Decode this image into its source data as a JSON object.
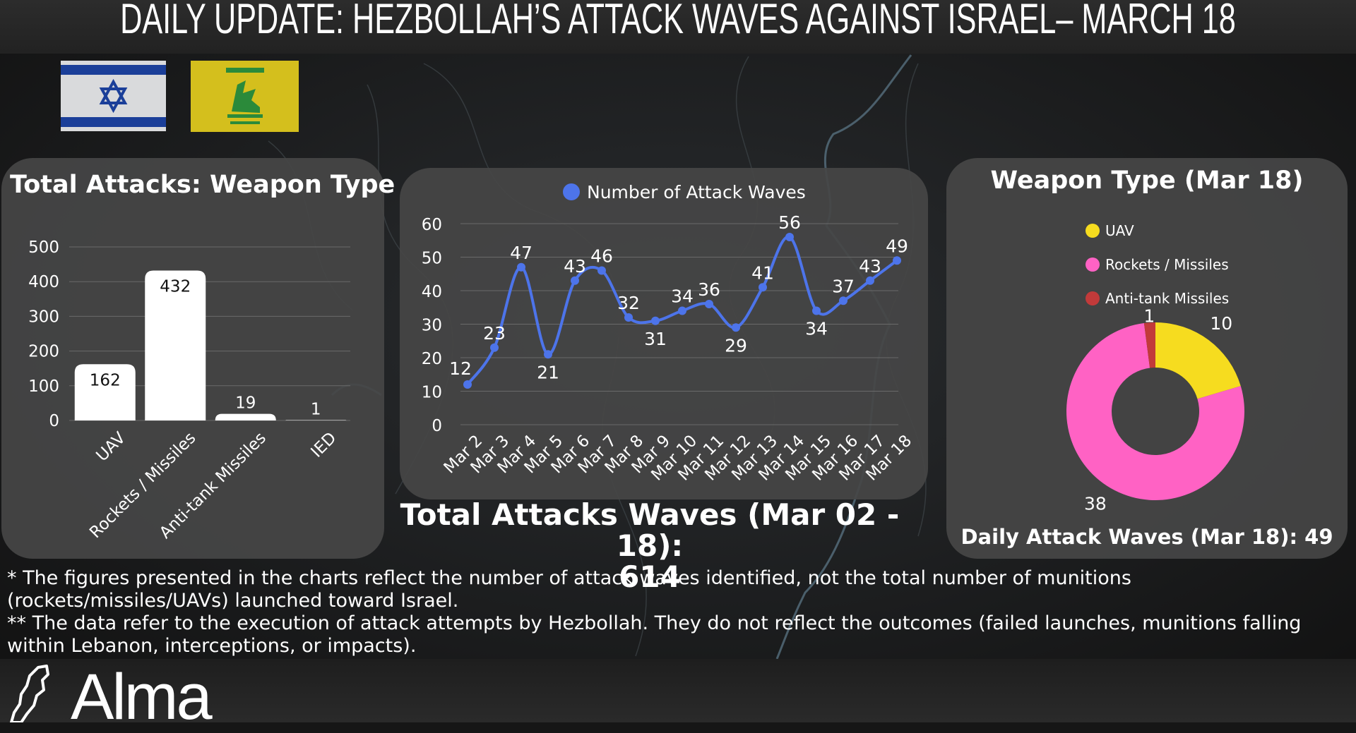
{
  "header": {
    "title": "DAILY UPDATE: HEZBOLLAH’S ATTACK WAVES AGAINST ISRAEL– MARCH 18"
  },
  "flags": [
    {
      "name": "israel-flag",
      "colors": [
        "#ffffff",
        "#1b3f99"
      ]
    },
    {
      "name": "hezbollah-flag",
      "colors": [
        "#d8c31a",
        "#2b8a3a"
      ]
    }
  ],
  "colors": {
    "line": "#4d74ea",
    "uav": "#f6dc1f",
    "rockets": "#ff62c4",
    "antitank": "#c23a3a",
    "panel": "#464646"
  },
  "chart_data": [
    {
      "type": "bar",
      "title": "Total Attacks: Weapon Type",
      "categories": [
        "UAV",
        "Rockets / Missiles",
        "Anti-tank Missiles",
        "IED"
      ],
      "values": [
        162,
        432,
        19,
        1
      ],
      "ylim": [
        0,
        500
      ],
      "yticks": [
        0,
        100,
        200,
        300,
        400,
        500
      ],
      "grid": true
    },
    {
      "type": "line",
      "legend": "Number of Attack Waves",
      "legend_position": "top-center",
      "x": [
        "Mar 2",
        "Mar 3",
        "Mar 4",
        "Mar 5",
        "Mar 6",
        "Mar 7",
        "Mar 8",
        "Mar 9",
        "Mar 10",
        "Mar 11",
        "Mar 12",
        "Mar 13",
        "Mar 14",
        "Mar 15",
        "Mar 16",
        "Mar 17",
        "Mar 18"
      ],
      "values": [
        12,
        23,
        47,
        21,
        43,
        46,
        32,
        31,
        34,
        36,
        29,
        41,
        56,
        34,
        37,
        43,
        49
      ],
      "ylim": [
        0,
        60
      ],
      "yticks": [
        0,
        10,
        20,
        30,
        40,
        50,
        60
      ],
      "grid": true
    },
    {
      "type": "pie",
      "title": "Weapon Type (Mar 18)",
      "labels": [
        "UAV",
        "Rockets / Missiles",
        "Anti-tank Missiles"
      ],
      "values": [
        10,
        38,
        1
      ],
      "legend_position": "top",
      "subtitle": "Daily Attack Waves (Mar 18): 49"
    }
  ],
  "totals": {
    "line1": "Total Attacks Waves (Mar 02 - 18):",
    "line2": "614"
  },
  "notes": [
    "* The figures presented in the charts reflect the number of attack waves identified, not the total number of munitions (rockets/missiles/UAVs) launched toward Israel.",
    "** The data refer to the execution of attack attempts by Hezbollah. They do not reflect the outcomes (failed launches, munitions falling within Lebanon, interceptions, or impacts)."
  ],
  "logo": {
    "text": "Alma",
    "icon": "lebanon-map-icon"
  }
}
